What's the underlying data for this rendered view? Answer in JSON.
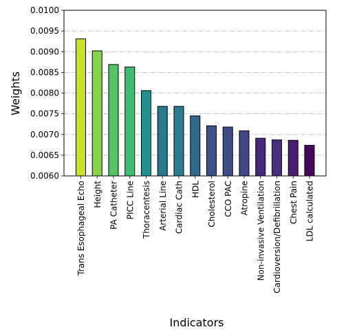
{
  "chart_data": {
    "type": "bar",
    "title": "",
    "xlabel": "Indicators",
    "ylabel": "Weights",
    "ylim": [
      0.006,
      0.01
    ],
    "yticks": [
      "0.0060",
      "0.0065",
      "0.0070",
      "0.0075",
      "0.0080",
      "0.0085",
      "0.0090",
      "0.0095",
      "0.0100"
    ],
    "grid": "horizontal dash-dot",
    "categories": [
      "Trans Esophageal Echo",
      "Height",
      "PA Catheter",
      "PICC Line",
      "Thoracentesis",
      "Arterial Line",
      "Cardiac Cath",
      "HDL",
      "Cholesterol",
      "CCO PAC",
      "Atropine",
      "Non-invasive Ventilation",
      "Cardioversion/Defibrillation",
      "Chest Pain",
      "LDL calculated"
    ],
    "values": [
      0.00931,
      0.00902,
      0.00869,
      0.00863,
      0.00806,
      0.00768,
      0.00768,
      0.00745,
      0.00721,
      0.00718,
      0.00709,
      0.00691,
      0.00687,
      0.00686,
      0.00674
    ],
    "colors": [
      "#cae11f",
      "#86d549",
      "#52c569",
      "#40bd72",
      "#20928c",
      "#2a788e",
      "#297b8e",
      "#30698e",
      "#3b528b",
      "#3e4c8a",
      "#414487",
      "#482979",
      "#472f7d",
      "#481f70",
      "#46085c"
    ]
  }
}
